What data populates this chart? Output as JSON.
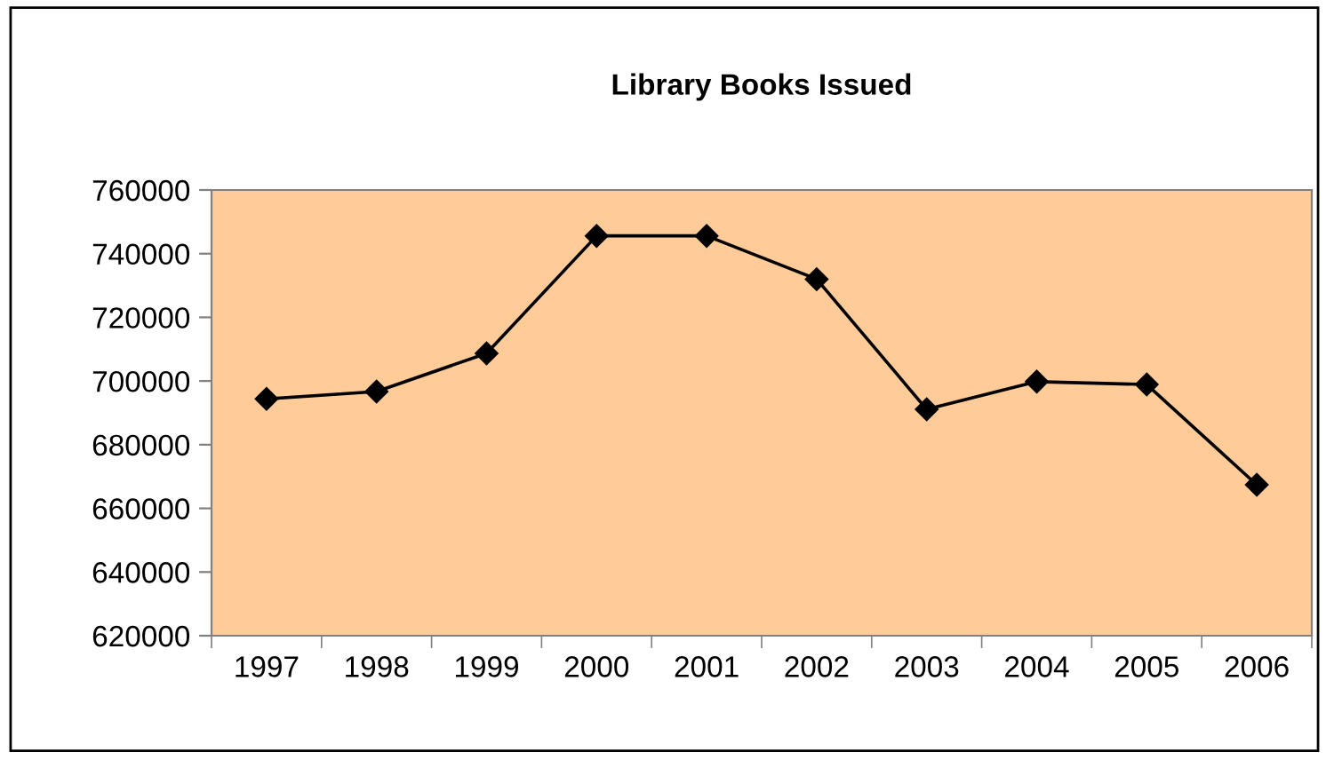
{
  "chart_data": {
    "type": "line",
    "title": "Library Books Issued",
    "categories": [
      "1997",
      "1998",
      "1999",
      "2000",
      "2001",
      "2002",
      "2003",
      "2004",
      "2005",
      "2006"
    ],
    "series": [
      {
        "color": "#000000",
        "values": [
          694400,
          696700,
          708700,
          745600,
          745600,
          732000,
          691100,
          699800,
          698900,
          667400
        ]
      }
    ],
    "ylim": [
      620000,
      760000
    ],
    "yticks": [
      620000,
      640000,
      660000,
      680000,
      700000,
      720000,
      740000,
      760000
    ],
    "grid": false,
    "legend": false,
    "marker": "diamond",
    "line_style": "solid"
  }
}
